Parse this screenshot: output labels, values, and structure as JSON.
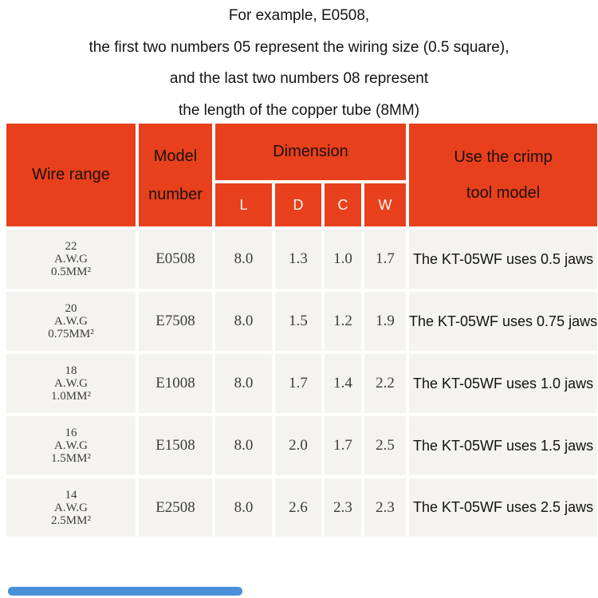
{
  "intro": {
    "line1": "For example, E0508,",
    "line2": "the first two numbers 05 represent the wiring size (0.5 square),",
    "line3": "and the last two numbers 08 represent",
    "line4": "the length of the copper tube (8MM)"
  },
  "table": {
    "header": {
      "wire_range": "Wire range",
      "model_line1": "Model",
      "model_line2": "number",
      "dimension": "Dimension",
      "dim_cols": [
        "L",
        "D",
        "C",
        "W"
      ],
      "crimp_line1": "Use the crimp",
      "crimp_line2": "tool model"
    },
    "rows": [
      {
        "awg": "22",
        "awg_label": "A.W.G",
        "size": "0.5MM²",
        "model": "E0508",
        "L": "8.0",
        "D": "1.3",
        "C": "1.0",
        "W": "1.7",
        "crimp": "The KT-05WF uses 0.5 jaws"
      },
      {
        "awg": "20",
        "awg_label": "A.W.G",
        "size": "0.75MM²",
        "model": "E7508",
        "L": "8.0",
        "D": "1.5",
        "C": "1.2",
        "W": "1.9",
        "crimp": "The KT-05WF uses 0.75 jaws"
      },
      {
        "awg": "18",
        "awg_label": "A.W.G",
        "size": "1.0MM²",
        "model": "E1008",
        "L": "8.0",
        "D": "1.7",
        "C": "1.4",
        "W": "2.2",
        "crimp": "The KT-05WF uses 1.0 jaws"
      },
      {
        "awg": "16",
        "awg_label": "A.W.G",
        "size": "1.5MM²",
        "model": "E1508",
        "L": "8.0",
        "D": "2.0",
        "C": "1.7",
        "W": "2.5",
        "crimp": "The KT-05WF uses 1.5 jaws"
      },
      {
        "awg": "14",
        "awg_label": "A.W.G",
        "size": "2.5MM²",
        "model": "E2508",
        "L": "8.0",
        "D": "2.6",
        "C": "2.3",
        "W": "2.3",
        "crimp": "The KT-05WF uses 2.5 jaws"
      }
    ]
  },
  "colors": {
    "header_bg": "#E8401D",
    "header_text": "#1C0F08",
    "header_letter": "#FFF6EB",
    "cell_bg": "#F4F3F0",
    "progress_bar": "#4A90D9"
  }
}
